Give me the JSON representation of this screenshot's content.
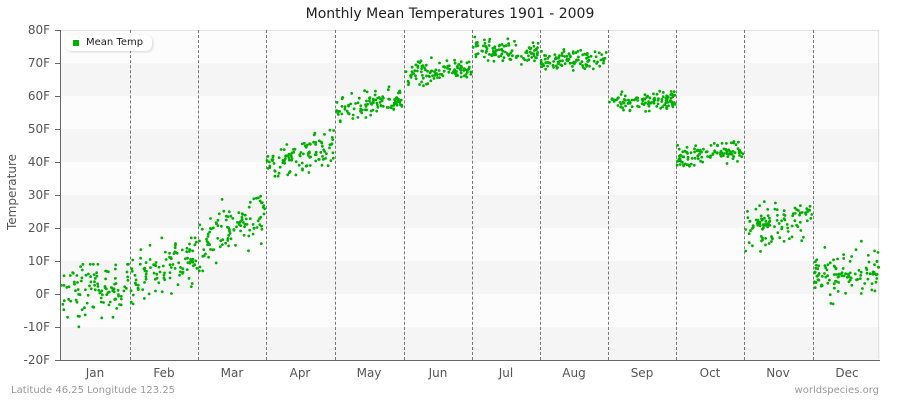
{
  "chart_data": {
    "type": "scatter",
    "title": "Monthly Mean Temperatures 1901 - 2009",
    "xlabel": "",
    "ylabel": "Temperature",
    "ylim": [
      -20,
      80
    ],
    "yticks": [
      "80F",
      "70F",
      "60F",
      "50F",
      "40F",
      "30F",
      "20F",
      "10F",
      "0F",
      "-10F",
      "-20F"
    ],
    "categories": [
      "Jan",
      "Feb",
      "Mar",
      "Apr",
      "May",
      "Jun",
      "Jul",
      "Aug",
      "Sep",
      "Oct",
      "Nov",
      "Dec"
    ],
    "legend": [
      {
        "name": "Mean Temp",
        "color": "#00b000"
      }
    ],
    "legend_position": "top-left",
    "grid": "alternating horizontal bands, dashed vertical month dividers",
    "series": [
      {
        "name": "Mean Temp",
        "points_per_month": 109,
        "month_summary": [
          {
            "month": "Jan",
            "start_mean": -1,
            "end_mean": 4,
            "spread": 4.5,
            "min": -12,
            "max": 9
          },
          {
            "month": "Feb",
            "start_mean": 4,
            "end_mean": 12,
            "spread": 4,
            "min": -3,
            "max": 17
          },
          {
            "month": "Mar",
            "start_mean": 14,
            "end_mean": 26,
            "spread": 4,
            "min": 7,
            "max": 33
          },
          {
            "month": "Apr",
            "start_mean": 39,
            "end_mean": 45,
            "spread": 2.8,
            "min": 34,
            "max": 50
          },
          {
            "month": "May",
            "start_mean": 55,
            "end_mean": 59,
            "spread": 2,
            "min": 51,
            "max": 63
          },
          {
            "month": "Jun",
            "start_mean": 66,
            "end_mean": 69,
            "spread": 1.8,
            "min": 63,
            "max": 72
          },
          {
            "month": "Jul",
            "start_mean": 74,
            "end_mean": 73,
            "spread": 1.6,
            "min": 69,
            "max": 78
          },
          {
            "month": "Aug",
            "start_mean": 71,
            "end_mean": 71,
            "spread": 1.4,
            "min": 67,
            "max": 75
          },
          {
            "month": "Sep",
            "start_mean": 58,
            "end_mean": 59,
            "spread": 1.6,
            "min": 53,
            "max": 63
          },
          {
            "month": "Oct",
            "start_mean": 41,
            "end_mean": 44,
            "spread": 1.8,
            "min": 34,
            "max": 47
          },
          {
            "month": "Nov",
            "start_mean": 20,
            "end_mean": 23,
            "spread": 3,
            "min": 11,
            "max": 28
          },
          {
            "month": "Dec",
            "start_mean": 5,
            "end_mean": 7,
            "spread": 3.5,
            "min": -3,
            "max": 16
          }
        ]
      }
    ]
  },
  "header": {
    "title": "Monthly Mean Temperatures 1901 - 2009"
  },
  "axes": {
    "ylabel": "Temperature",
    "yticks": [
      "80F",
      "70F",
      "60F",
      "50F",
      "40F",
      "30F",
      "20F",
      "10F",
      "0F",
      "-10F",
      "-20F"
    ],
    "xticks": [
      "Jan",
      "Feb",
      "Mar",
      "Apr",
      "May",
      "Jun",
      "Jul",
      "Aug",
      "Sep",
      "Oct",
      "Nov",
      "Dec"
    ]
  },
  "legend": {
    "label": "Mean Temp",
    "color": "#00b000"
  },
  "footer": {
    "location": "Latitude 46.25 Longitude 123.25",
    "source": "worldspecies.org"
  }
}
